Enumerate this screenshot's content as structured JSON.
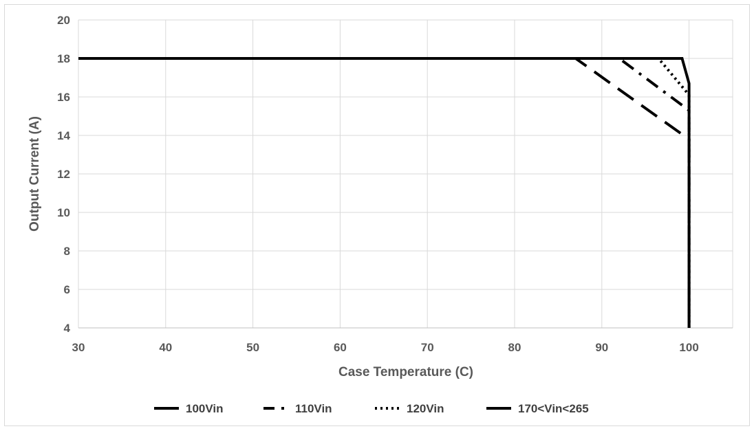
{
  "chart_data": {
    "type": "line",
    "xlabel": "Case Temperature (C)",
    "ylabel": "Output Current (A)",
    "xlim": [
      30,
      105
    ],
    "ylim": [
      4,
      20
    ],
    "x_ticks": [
      30,
      40,
      50,
      60,
      70,
      80,
      90,
      100
    ],
    "y_ticks": [
      4,
      6,
      8,
      10,
      12,
      14,
      16,
      18,
      20
    ],
    "grid": true,
    "legend_position": "bottom",
    "series": [
      {
        "name": "100Vin",
        "style": "long-dash",
        "color": "#000000",
        "points": [
          [
            30,
            18
          ],
          [
            87,
            18
          ],
          [
            100,
            13.8
          ],
          [
            100,
            4
          ]
        ]
      },
      {
        "name": "110Vin",
        "style": "dash-dot",
        "color": "#000000",
        "points": [
          [
            30,
            18
          ],
          [
            92,
            18
          ],
          [
            100,
            15.3
          ],
          [
            100,
            4
          ]
        ]
      },
      {
        "name": "120Vin",
        "style": "dotted",
        "color": "#000000",
        "points": [
          [
            30,
            18
          ],
          [
            96.5,
            18
          ],
          [
            100,
            16.1
          ],
          [
            100,
            4
          ]
        ]
      },
      {
        "name": "170<Vin<265",
        "style": "solid",
        "color": "#000000",
        "points": [
          [
            30,
            18
          ],
          [
            99.2,
            18
          ],
          [
            100,
            16.7
          ],
          [
            100,
            4
          ]
        ]
      }
    ]
  }
}
